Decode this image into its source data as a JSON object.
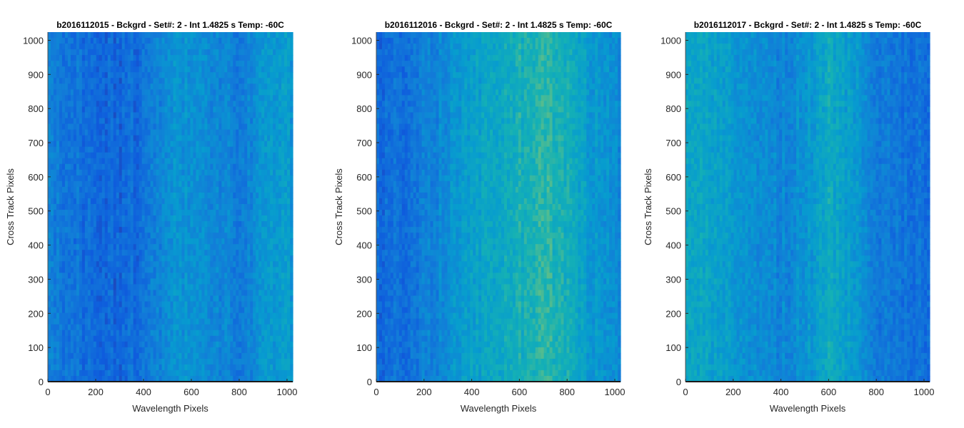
{
  "chart_data": [
    {
      "type": "heatmap",
      "title": "b2016112015 - Bckgrd - Set#: 2 - Int 1.4825 s Temp: -60C",
      "xlabel": "Wavelength Pixels",
      "ylabel": "Cross Track Pixels",
      "xlim": [
        0,
        1024
      ],
      "ylim": [
        0,
        1024
      ],
      "xticks": [
        0,
        200,
        400,
        600,
        800,
        1000
      ],
      "yticks": [
        0,
        100,
        200,
        300,
        400,
        500,
        600,
        700,
        800,
        900,
        1000
      ],
      "colormap": "parula",
      "column_intensity_profile": {
        "x": [
          0,
          100,
          200,
          300,
          400,
          500,
          600,
          700,
          800,
          900,
          1000,
          1024
        ],
        "level": [
          0.32,
          0.26,
          0.22,
          0.2,
          0.24,
          0.38,
          0.42,
          0.34,
          0.3,
          0.4,
          0.46,
          0.44
        ]
      }
    },
    {
      "type": "heatmap",
      "title": "b2016112016 - Bckgrd - Set#: 2 - Int 1.4825 s Temp: -60C",
      "xlabel": "Wavelength Pixels",
      "ylabel": "Cross Track Pixels",
      "xlim": [
        0,
        1024
      ],
      "ylim": [
        0,
        1024
      ],
      "xticks": [
        0,
        200,
        400,
        600,
        800,
        1000
      ],
      "yticks": [
        0,
        100,
        200,
        300,
        400,
        500,
        600,
        700,
        800,
        900,
        1000
      ],
      "colormap": "parula",
      "column_intensity_profile": {
        "x": [
          0,
          100,
          200,
          300,
          400,
          500,
          600,
          700,
          800,
          900,
          1000,
          1024
        ],
        "level": [
          0.22,
          0.24,
          0.3,
          0.38,
          0.46,
          0.52,
          0.58,
          0.66,
          0.56,
          0.44,
          0.38,
          0.36
        ]
      }
    },
    {
      "type": "heatmap",
      "title": "b2016112017 - Bckgrd - Set#: 2 - Int 1.4825 s Temp: -60C",
      "xlabel": "Wavelength Pixels",
      "ylabel": "Cross Track Pixels",
      "xlim": [
        0,
        1024
      ],
      "ylim": [
        0,
        1024
      ],
      "xticks": [
        0,
        200,
        400,
        600,
        800,
        1000
      ],
      "yticks": [
        0,
        100,
        200,
        300,
        400,
        500,
        600,
        700,
        800,
        900,
        1000
      ],
      "colormap": "parula",
      "column_intensity_profile": {
        "x": [
          0,
          100,
          200,
          300,
          400,
          500,
          600,
          700,
          800,
          900,
          1000,
          1024
        ],
        "level": [
          0.56,
          0.5,
          0.42,
          0.36,
          0.34,
          0.4,
          0.54,
          0.46,
          0.3,
          0.26,
          0.24,
          0.24
        ]
      }
    }
  ]
}
